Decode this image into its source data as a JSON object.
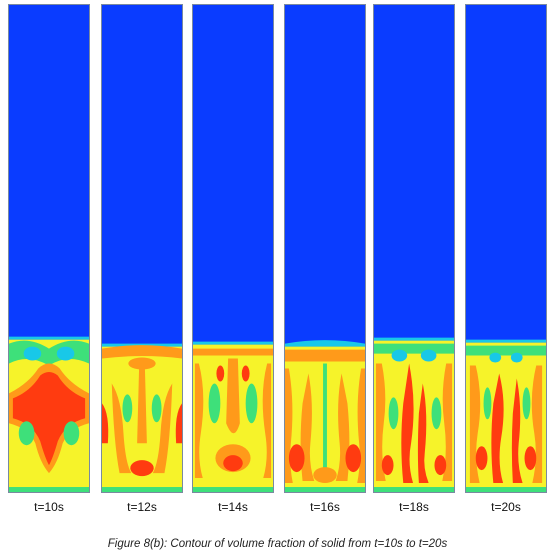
{
  "figure": {
    "caption": "Figure 8(b):  Contour of volume fraction of solid from t=10s to t=20s",
    "colors": {
      "low": "#0a3cff",
      "cyan": "#18c8e8",
      "green": "#3ee07a",
      "yellow": "#f6f32a",
      "orange": "#ff9a1a",
      "red": "#ff3b10"
    },
    "panels": [
      {
        "label": "t=10s"
      },
      {
        "label": "t=12s"
      },
      {
        "label": "t=14s"
      },
      {
        "label": "t=16s"
      },
      {
        "label": "t=18s"
      },
      {
        "label": "t=20s"
      }
    ]
  }
}
